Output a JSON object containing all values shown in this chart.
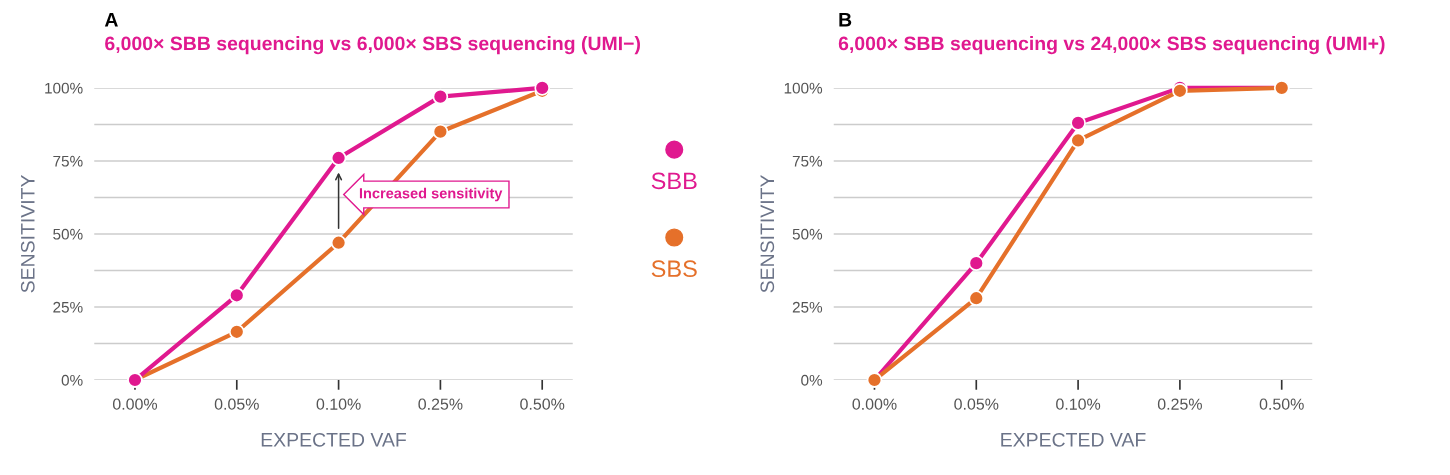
{
  "chart_data": [
    {
      "type": "line",
      "title": "A",
      "subtitle": "6,000× SBB sequencing vs 6,000× SBS sequencing (UMI−)",
      "xlabel": "EXPECTED VAF",
      "ylabel": "SENSITIVITY",
      "categories": [
        "0.00%",
        "0.05%",
        "0.10%",
        "0.25%",
        "0.50%"
      ],
      "ylim": [
        0,
        100
      ],
      "yticks": [
        {
          "value": 0,
          "label": "0%"
        },
        {
          "value": 12.5,
          "label": null
        },
        {
          "value": 25,
          "label": "25%"
        },
        {
          "value": 37.5,
          "label": null
        },
        {
          "value": 50,
          "label": "50%"
        },
        {
          "value": 62.5,
          "label": null
        },
        {
          "value": 75,
          "label": "75%"
        },
        {
          "value": 87.5,
          "label": null
        },
        {
          "value": 100,
          "label": "100%"
        }
      ],
      "grid": "y",
      "marker": "circle",
      "line_style": "solid",
      "legend": "right",
      "series": [
        {
          "name": "SBS",
          "color": "#e5702a",
          "values": [
            0,
            16.5,
            47,
            85,
            99
          ]
        },
        {
          "name": "SBB",
          "color": "#e0198f",
          "values": [
            0,
            29,
            76,
            97,
            100
          ]
        }
      ],
      "annotations": [
        "Increased sensitivity"
      ]
    },
    {
      "type": "line",
      "title": "B",
      "subtitle": "6,000× SBB sequencing vs 24,000× SBS sequencing (UMI+)",
      "xlabel": "EXPECTED VAF",
      "ylabel": "SENSITIVITY",
      "categories": [
        "0.00%",
        "0.05%",
        "0.10%",
        "0.25%",
        "0.50%"
      ],
      "ylim": [
        0,
        100
      ],
      "yticks": [
        {
          "value": 0,
          "label": "0%"
        },
        {
          "value": 12.5,
          "label": null
        },
        {
          "value": 25,
          "label": "25%"
        },
        {
          "value": 37.5,
          "label": null
        },
        {
          "value": 50,
          "label": "50%"
        },
        {
          "value": 62.5,
          "label": null
        },
        {
          "value": 75,
          "label": "75%"
        },
        {
          "value": 87.5,
          "label": null
        },
        {
          "value": 100,
          "label": "100%"
        }
      ],
      "grid": "y",
      "marker": "circle",
      "line_style": "solid",
      "series": [
        {
          "color": "#e0198f",
          "values": [
            0,
            40,
            88,
            100,
            100
          ]
        },
        {
          "color": "#e5702a",
          "values": [
            0,
            28,
            82,
            99,
            100
          ]
        }
      ]
    }
  ]
}
